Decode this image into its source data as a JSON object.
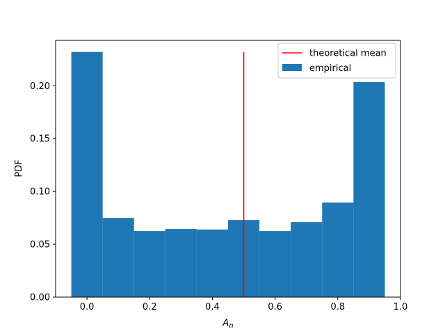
{
  "chart_data": {
    "type": "bar",
    "subtype": "histogram",
    "xlabel_base": "A",
    "xlabel_sub": "n",
    "ylabel": "PDF",
    "xlim": [
      -0.1,
      1.0
    ],
    "ylim": [
      0.0,
      0.243
    ],
    "grid": false,
    "legend_position": "top-right",
    "bin_edges": [
      -0.05,
      0.05,
      0.15,
      0.25,
      0.35,
      0.45,
      0.55,
      0.65,
      0.75,
      0.85,
      0.95
    ],
    "values": [
      0.232,
      0.075,
      0.0625,
      0.0645,
      0.064,
      0.073,
      0.0625,
      0.071,
      0.0895,
      0.2035
    ],
    "x_ticks": [
      {
        "value": 0.0,
        "label": "0.0"
      },
      {
        "value": 0.2,
        "label": "0.2"
      },
      {
        "value": 0.4,
        "label": "0.4"
      },
      {
        "value": 0.6,
        "label": "0.6"
      },
      {
        "value": 0.8,
        "label": "0.8"
      },
      {
        "value": 1.0,
        "label": "1.0"
      }
    ],
    "y_ticks": [
      {
        "value": 0.0,
        "label": "0.00"
      },
      {
        "value": 0.05,
        "label": "0.05"
      },
      {
        "value": 0.1,
        "label": "0.10"
      },
      {
        "value": 0.15,
        "label": "0.15"
      },
      {
        "value": 0.2,
        "label": "0.20"
      }
    ],
    "series": [
      {
        "name": "empirical",
        "kind": "histogram",
        "color": "#1f77b4"
      },
      {
        "name": "theoretical mean",
        "kind": "vline",
        "x": 0.5,
        "y_range": [
          0.0,
          0.232
        ],
        "color": "#ff0000"
      }
    ]
  }
}
